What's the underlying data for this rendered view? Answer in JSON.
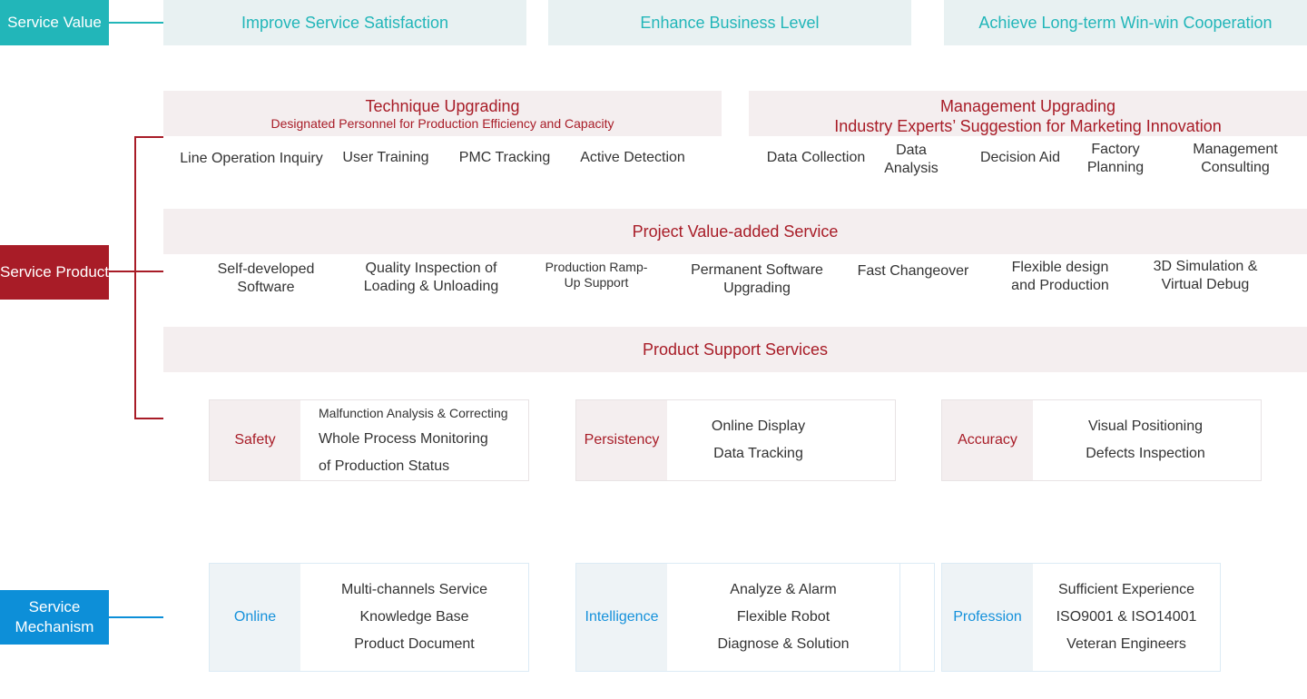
{
  "colors": {
    "teal": "#22b6b9",
    "red": "#a81c27",
    "blue": "#0d8fd8"
  },
  "service_value": {
    "tag": "Service Value",
    "items": [
      "Improve Service Satisfaction",
      "Enhance Business Level",
      "Achieve Long-term Win-win Cooperation"
    ]
  },
  "service_product": {
    "tag": "Service Product",
    "technique": {
      "title": "Technique Upgrading",
      "subtitle": "Designated Personnel for Production Efficiency and Capacity",
      "items": [
        "Line Operation Inquiry",
        "User Training",
        "PMC Tracking",
        "Active Detection"
      ]
    },
    "management": {
      "title": "Management Upgrading",
      "subtitle": "Industry Experts’ Suggestion for Marketing Innovation",
      "items": [
        "Data Collection",
        "Data Analysis",
        "Decision Aid",
        "Factory Planning",
        "Management Consulting"
      ]
    },
    "project": {
      "title": "Project Value-added Service",
      "items": [
        "Self-developed Software",
        "Quality Inspection of Loading & Unloading",
        "Production Ramp-Up Support",
        "Permanent Software Upgrading",
        "Fast Changeover",
        "Flexible design and Production",
        "3D Simulation & Virtual Debug"
      ]
    },
    "support": {
      "title": "Product Support Services",
      "boxes": [
        {
          "label": "Safety",
          "lines": [
            "Malfunction Analysis & Correcting",
            "Whole Process Monitoring",
            "of Production Status"
          ]
        },
        {
          "label": "Persistency",
          "lines": [
            "Online Display",
            "Data Tracking"
          ]
        },
        {
          "label": "Accuracy",
          "lines": [
            "Visual Positioning",
            "Defects Inspection"
          ]
        }
      ]
    }
  },
  "service_mechanism": {
    "tag": "Service Mechanism",
    "boxes": [
      {
        "label": "Online",
        "lines": [
          "Multi-channels Service",
          "Knowledge Base",
          "Product Document"
        ]
      },
      {
        "label": "Intelligence",
        "lines": [
          "Analyze & Alarm",
          "Flexible Robot",
          "Diagnose & Solution"
        ]
      },
      {
        "label": "Profession",
        "lines": [
          "Sufficient Experience",
          "ISO9001 & ISO14001",
          "Veteran Engineers"
        ]
      }
    ]
  }
}
